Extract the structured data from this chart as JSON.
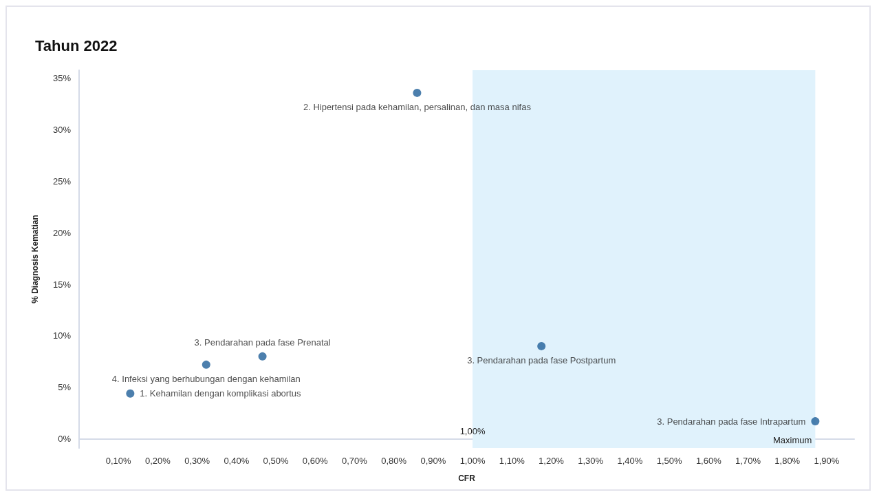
{
  "chart_data": {
    "type": "scatter",
    "title": "Tahun 2022",
    "xlabel": "CFR",
    "ylabel": "% Diagnosis Kematian",
    "series": [
      {
        "name": "1. Kehamilan dengan komplikasi abortus",
        "color": "#1f5f99",
        "x": [
          0.13
        ],
        "values": [
          4.4
        ]
      },
      {
        "name": "4. Infeksi yang berhubungan dengan kehamilan",
        "color": "#1f5f99",
        "x": [
          0.323
        ],
        "values": [
          7.2
        ]
      },
      {
        "name": "3. Pendarahan pada fase Prenatal",
        "color": "#1f5f99",
        "x": [
          0.466
        ],
        "values": [
          8.0
        ]
      },
      {
        "name": "2. Hipertensi pada kehamilan, persalinan, dan masa nifas",
        "color": "#1f5f99",
        "x": [
          0.859
        ],
        "values": [
          33.6
        ]
      },
      {
        "name": "3. Pendarahan pada fase Postpartum",
        "color": "#1f5f99",
        "x": [
          1.175
        ],
        "values": [
          9.0
        ]
      },
      {
        "name": "3. Pendarahan pada fase Intrapartum",
        "color": "#1f5f99",
        "x": [
          1.871
        ],
        "values": [
          1.7
        ]
      }
    ],
    "xlim": [
      0,
      1.97
    ],
    "ylim": [
      -0.9,
      35.8
    ],
    "xticks": [
      {
        "value": 0.1,
        "label": "0,10%"
      },
      {
        "value": 0.2,
        "label": "0,20%"
      },
      {
        "value": 0.3,
        "label": "0,30%"
      },
      {
        "value": 0.4,
        "label": "0,40%"
      },
      {
        "value": 0.5,
        "label": "0,50%"
      },
      {
        "value": 0.6,
        "label": "0,60%"
      },
      {
        "value": 0.7,
        "label": "0,70%"
      },
      {
        "value": 0.8,
        "label": "0,80%"
      },
      {
        "value": 0.9,
        "label": "0,90%"
      },
      {
        "value": 1.0,
        "label": "1,00%"
      },
      {
        "value": 1.1,
        "label": "1,10%"
      },
      {
        "value": 1.2,
        "label": "1,20%"
      },
      {
        "value": 1.3,
        "label": "1,30%"
      },
      {
        "value": 1.4,
        "label": "1,40%"
      },
      {
        "value": 1.5,
        "label": "1,50%"
      },
      {
        "value": 1.6,
        "label": "1,60%"
      },
      {
        "value": 1.7,
        "label": "1,70%"
      },
      {
        "value": 1.8,
        "label": "1,80%"
      },
      {
        "value": 1.9,
        "label": "1,90%"
      }
    ],
    "yticks": [
      {
        "value": 0,
        "label": "0%"
      },
      {
        "value": 5,
        "label": "5%"
      },
      {
        "value": 10,
        "label": "10%"
      },
      {
        "value": 15,
        "label": "15%"
      },
      {
        "value": 20,
        "label": "20%"
      },
      {
        "value": 25,
        "label": "25%"
      },
      {
        "value": 30,
        "label": "30%"
      },
      {
        "value": 35,
        "label": "35%"
      }
    ],
    "bands": [
      {
        "axis": "x",
        "from": 1.0,
        "to": 1.871,
        "label": "Maximum",
        "color": "#e0f2fc"
      }
    ],
    "annotations": [
      {
        "text": "1,00%",
        "x": 1.0,
        "y": 0
      }
    ],
    "marker": "circle",
    "grid": false,
    "legend": false
  }
}
